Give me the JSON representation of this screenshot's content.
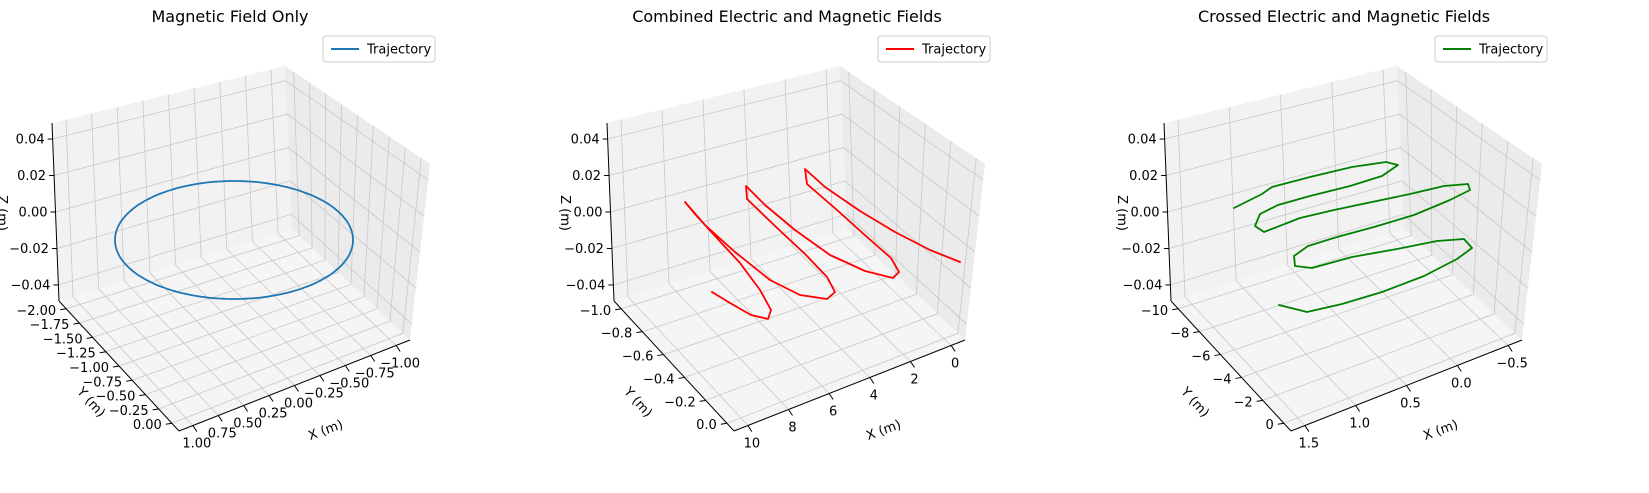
{
  "chart_data": [
    {
      "type": "line",
      "title": "Magnetic Field Only",
      "legend": "top-right",
      "series": [
        {
          "name": "Trajectory",
          "color": "#1f77b4",
          "shape": "circle",
          "center": [
            -0.016,
            -1.0,
            0.0
          ],
          "radius": 1.0
        }
      ],
      "xlabel": "X (m)",
      "ylabel": "Y (m)",
      "zlabel": "Z (m)",
      "xlim": [
        1.0,
        -1.0
      ],
      "ylim": [
        0.0,
        -2.0
      ],
      "zlim": [
        -0.05,
        0.05
      ],
      "xticks": [
        "1.00",
        "0.75",
        "0.50",
        "0.25",
        "0.00",
        "−0.25",
        "−0.50",
        "−0.75",
        "−1.00"
      ],
      "yticks": [
        "0.00",
        "−0.25",
        "−0.50",
        "−0.75",
        "−1.00",
        "−1.25",
        "−1.50",
        "−1.75",
        "−2.00"
      ],
      "zticks": [
        "−0.04",
        "−0.02",
        "0.00",
        "0.02",
        "0.04"
      ],
      "grid": true
    },
    {
      "type": "line",
      "title": "Combined Electric and Magnetic Fields",
      "legend": "top-right",
      "series": [
        {
          "name": "Trajectory",
          "color": "#ff0000",
          "shape": "cycloid",
          "x_range": [
            0,
            10
          ],
          "y_range": [
            0,
            -1
          ],
          "cycles": 3
        }
      ],
      "xlabel": "X (m)",
      "ylabel": "Y (m)",
      "zlabel": "Z (m)",
      "xlim": [
        10,
        0
      ],
      "ylim": [
        0.0,
        -1.0
      ],
      "zlim": [
        -0.05,
        0.05
      ],
      "xticks": [
        "10",
        "8",
        "6",
        "4",
        "2",
        "0"
      ],
      "yticks": [
        "0.0",
        "−0.2",
        "−0.4",
        "−0.6",
        "−0.8",
        "−1.0"
      ],
      "zticks": [
        "−0.04",
        "−0.02",
        "0.00",
        "0.02",
        "0.04"
      ],
      "grid": true
    },
    {
      "type": "line",
      "title": "Crossed Electric and Magnetic Fields",
      "legend": "top-right",
      "series": [
        {
          "name": "Trajectory",
          "color": "#008000",
          "shape": "trochoid",
          "x_range": [
            -0.5,
            1.5
          ],
          "y_range": [
            0,
            -11
          ],
          "cycles": 3.5
        }
      ],
      "xlabel": "X (m)",
      "ylabel": "Y (m)",
      "zlabel": "Z (m)",
      "xlim": [
        1.5,
        -0.5
      ],
      "ylim": [
        0,
        -11
      ],
      "zlim": [
        -0.05,
        0.05
      ],
      "xticks": [
        "1.5",
        "1.0",
        "0.5",
        "0.0",
        "−0.5"
      ],
      "yticks": [
        "0",
        "−2",
        "−4",
        "−6",
        "−8",
        "−10"
      ],
      "zticks": [
        "−0.04",
        "−0.02",
        "0.00",
        "0.02",
        "0.04"
      ],
      "grid": true
    }
  ]
}
